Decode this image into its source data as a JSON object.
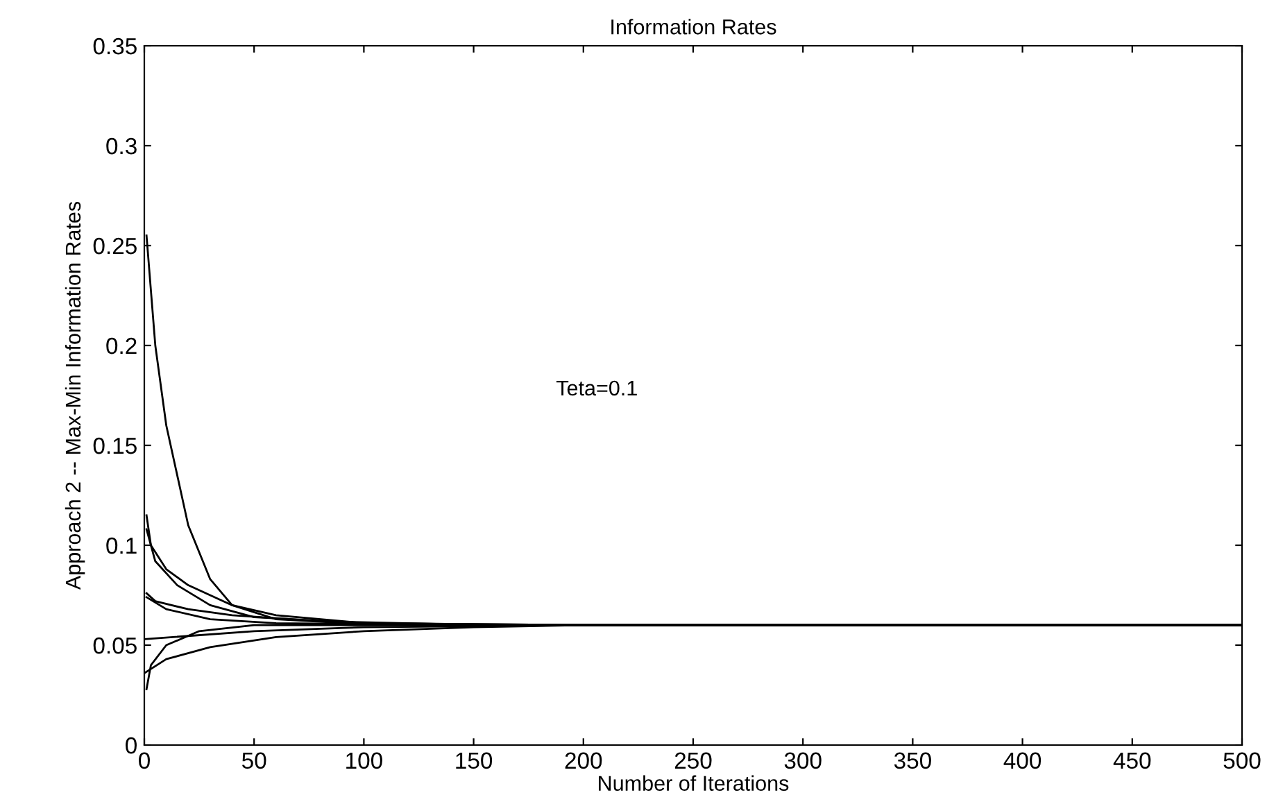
{
  "chart_data": {
    "type": "line",
    "title": "Information Rates",
    "xlabel": "Number of Iterations",
    "ylabel": "Approach 2 -- Max-Min Information Rates",
    "annotations": [
      "Teta=0.1"
    ],
    "series": [
      {
        "color": "#000000",
        "x": [
          1,
          5,
          10,
          20,
          30,
          40,
          60,
          100,
          200,
          500
        ],
        "values": [
          0.255,
          0.2,
          0.16,
          0.11,
          0.083,
          0.07,
          0.063,
          0.0605,
          0.06,
          0.06
        ]
      },
      {
        "color": "#000000",
        "x": [
          1,
          3,
          10,
          20,
          40,
          60,
          100,
          200,
          500
        ],
        "values": [
          0.115,
          0.1,
          0.088,
          0.08,
          0.07,
          0.065,
          0.061,
          0.06,
          0.06
        ]
      },
      {
        "color": "#000000",
        "x": [
          1,
          5,
          15,
          30,
          50,
          100,
          200,
          500
        ],
        "values": [
          0.108,
          0.092,
          0.08,
          0.07,
          0.064,
          0.061,
          0.06,
          0.06
        ]
      },
      {
        "color": "#000000",
        "x": [
          1,
          5,
          20,
          40,
          80,
          150,
          200,
          500
        ],
        "values": [
          0.076,
          0.072,
          0.068,
          0.065,
          0.062,
          0.0602,
          0.06,
          0.06
        ]
      },
      {
        "color": "#000000",
        "x": [
          1,
          10,
          30,
          60,
          150,
          500
        ],
        "values": [
          0.074,
          0.068,
          0.063,
          0.061,
          0.06,
          0.06
        ]
      },
      {
        "color": "#000000",
        "x": [
          0,
          50,
          100,
          200,
          500
        ],
        "values": [
          0.053,
          0.057,
          0.059,
          0.06,
          0.06
        ]
      },
      {
        "color": "#000000",
        "x": [
          1,
          3,
          10,
          25,
          50,
          500
        ],
        "values": [
          0.028,
          0.04,
          0.05,
          0.057,
          0.06,
          0.06
        ]
      },
      {
        "color": "#000000",
        "x": [
          0,
          10,
          30,
          60,
          100,
          150,
          200,
          500
        ],
        "values": [
          0.036,
          0.043,
          0.049,
          0.054,
          0.057,
          0.059,
          0.06,
          0.06
        ]
      }
    ],
    "xlim": [
      0,
      500
    ],
    "xticks": [
      0,
      50,
      100,
      150,
      200,
      250,
      300,
      350,
      400,
      450,
      500
    ],
    "ylim": [
      0,
      0.35
    ],
    "yticks": [
      0,
      0.05,
      0.1,
      0.15,
      0.2,
      0.25,
      0.3,
      0.35
    ],
    "grid": false,
    "legend": false,
    "marker": "none",
    "line_style": "solid"
  }
}
